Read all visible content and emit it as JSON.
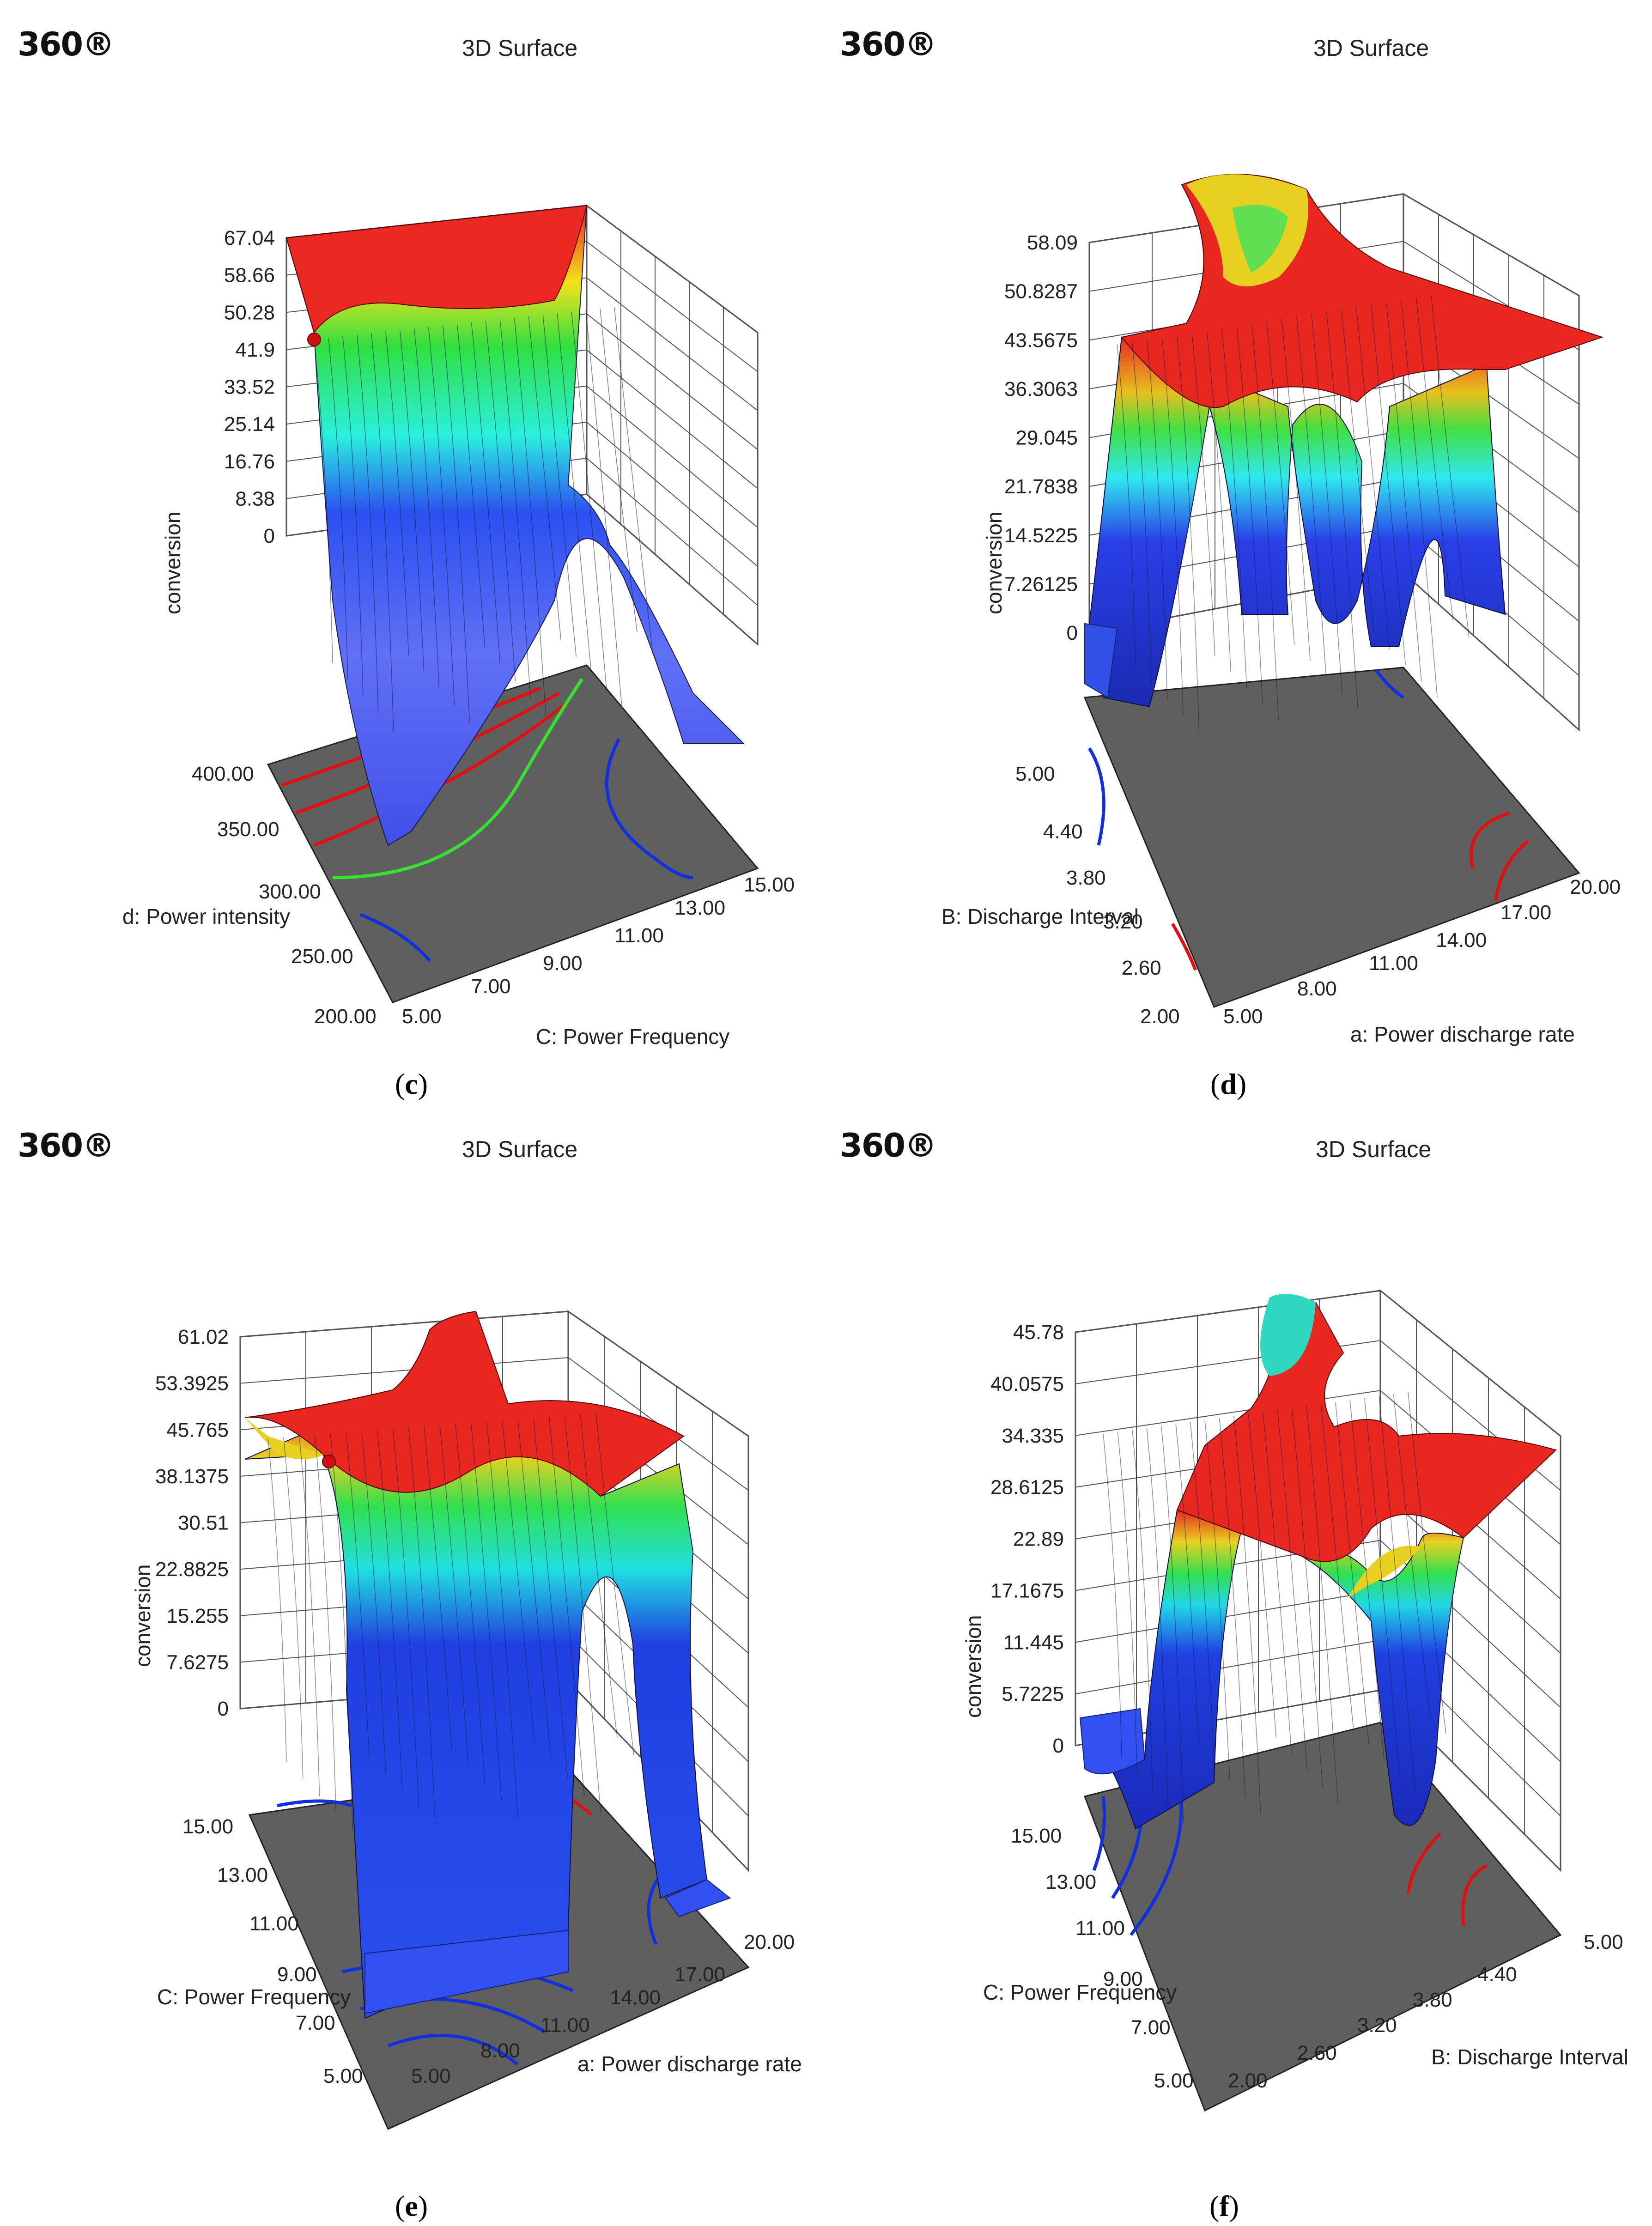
{
  "logo": "360®",
  "chart_data": [
    {
      "type": "surface",
      "panel": "c",
      "title": "3D Surface",
      "zlabel": "conversion",
      "zticks": [
        "0",
        "8.38",
        "16.76",
        "25.14",
        "33.52",
        "41.9",
        "50.28",
        "58.66",
        "67.04"
      ],
      "ylabel": "d: Power intensity",
      "yticks": [
        "200.00",
        "250.00",
        "300.00",
        "350.00",
        "400.00"
      ],
      "xlabel": "C: Power Frequency",
      "xticks": [
        "5.00",
        "7.00",
        "9.00",
        "11.00",
        "13.00",
        "15.00"
      ],
      "zlim": [
        0,
        67.04
      ]
    },
    {
      "type": "surface",
      "panel": "d",
      "title": "3D Surface",
      "zlabel": "conversion",
      "zticks": [
        "0",
        "7.26125",
        "14.5225",
        "21.7838",
        "29.045",
        "36.3063",
        "43.5675",
        "50.8287",
        "58.09"
      ],
      "ylabel": "B: Discharge Interval",
      "yticks": [
        "2.00",
        "2.60",
        "3.20",
        "3.80",
        "4.40",
        "5.00"
      ],
      "xlabel": "a: Power discharge rate",
      "xticks": [
        "5.00",
        "8.00",
        "11.00",
        "14.00",
        "17.00",
        "20.00"
      ],
      "zlim": [
        0,
        58.09
      ]
    },
    {
      "type": "surface",
      "panel": "e",
      "title": "3D Surface",
      "zlabel": "conversion",
      "zticks": [
        "0",
        "7.6275",
        "15.255",
        "22.8825",
        "30.51",
        "38.1375",
        "45.765",
        "53.3925",
        "61.02"
      ],
      "ylabel": "C: Power Frequency",
      "yticks": [
        "5.00",
        "7.00",
        "9.00",
        "11.00",
        "13.00",
        "15.00"
      ],
      "xlabel": "a: Power discharge rate",
      "xticks": [
        "5.00",
        "8.00",
        "11.00",
        "14.00",
        "17.00",
        "20.00"
      ],
      "zlim": [
        0,
        61.02
      ]
    },
    {
      "type": "surface",
      "panel": "f",
      "title": "3D Surface",
      "zlabel": "conversion",
      "zticks": [
        "0",
        "5.7225",
        "11.445",
        "17.1675",
        "22.89",
        "28.6125",
        "34.335",
        "40.0575",
        "45.78"
      ],
      "ylabel": "C: Power Frequency",
      "yticks": [
        "5.00",
        "7.00",
        "9.00",
        "11.00",
        "13.00",
        "15.00"
      ],
      "xlabel": "B: Discharge Interval",
      "xticks": [
        "2.00",
        "2.60",
        "3.20",
        "3.80",
        "4.40",
        "5.00"
      ],
      "zlim": [
        0,
        45.78
      ]
    }
  ],
  "captions": [
    "c",
    "d",
    "e",
    "f"
  ]
}
